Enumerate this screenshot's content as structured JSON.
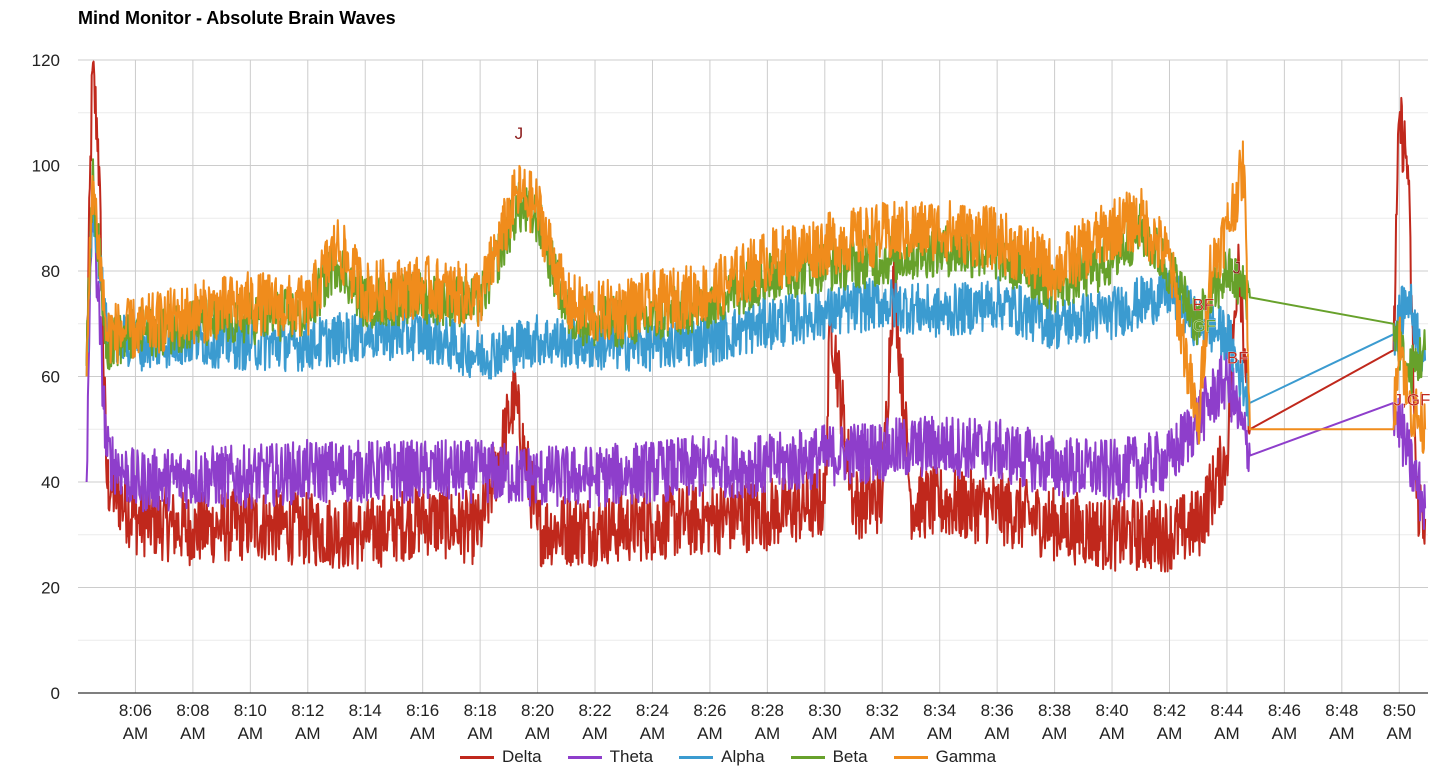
{
  "chart_data": {
    "type": "line",
    "title": "Mind Monitor - Absolute Brain Waves",
    "xlabel": "",
    "ylabel": "",
    "ylim": [
      0,
      120
    ],
    "y_ticks": [
      0,
      20,
      40,
      60,
      80,
      100,
      120
    ],
    "x_range_minutes": [
      "8:04",
      "8:51"
    ],
    "x_ticks": [
      {
        "t": "8:06",
        "line1": "8:06",
        "line2": "AM"
      },
      {
        "t": "8:08",
        "line1": "8:08",
        "line2": "AM"
      },
      {
        "t": "8:10",
        "line1": "8:10",
        "line2": "AM"
      },
      {
        "t": "8:12",
        "line1": "8:12",
        "line2": "AM"
      },
      {
        "t": "8:14",
        "line1": "8:14",
        "line2": "AM"
      },
      {
        "t": "8:16",
        "line1": "8:16",
        "line2": "AM"
      },
      {
        "t": "8:18",
        "line1": "8:18",
        "line2": "AM"
      },
      {
        "t": "8:20",
        "line1": "8:20",
        "line2": "AM"
      },
      {
        "t": "8:22",
        "line1": "8:22",
        "line2": "AM"
      },
      {
        "t": "8:24",
        "line1": "8:24",
        "line2": "AM"
      },
      {
        "t": "8:26",
        "line1": "8:26",
        "line2": "AM"
      },
      {
        "t": "8:28",
        "line1": "8:28",
        "line2": "AM"
      },
      {
        "t": "8:30",
        "line1": "8:30",
        "line2": "AM"
      },
      {
        "t": "8:32",
        "line1": "8:32",
        "line2": "AM"
      },
      {
        "t": "8:34",
        "line1": "8:34",
        "line2": "AM"
      },
      {
        "t": "8:36",
        "line1": "8:36",
        "line2": "AM"
      },
      {
        "t": "8:38",
        "line1": "8:38",
        "line2": "AM"
      },
      {
        "t": "8:40",
        "line1": "8:40",
        "line2": "AM"
      },
      {
        "t": "8:42",
        "line1": "8:42",
        "line2": "AM"
      },
      {
        "t": "8:44",
        "line1": "8:44",
        "line2": "AM"
      },
      {
        "t": "8:46",
        "line1": "8:46",
        "line2": "AM"
      },
      {
        "t": "8:48",
        "line1": "8:48",
        "line2": "AM"
      },
      {
        "t": "8:50",
        "line1": "8:50",
        "line2": "AM"
      }
    ],
    "grid": true,
    "legend_position": "bottom",
    "series": [
      {
        "name": "Delta",
        "color": "#c0281c",
        "points": [
          [
            "8:04.3",
            62
          ],
          [
            "8:04.5",
            118
          ],
          [
            "8:04.7",
            105
          ],
          [
            "8:05",
            40
          ],
          [
            "8:06",
            33
          ],
          [
            "8:08",
            31
          ],
          [
            "8:10",
            32
          ],
          [
            "8:12",
            31
          ],
          [
            "8:14",
            30
          ],
          [
            "8:16",
            33
          ],
          [
            "8:18",
            31
          ],
          [
            "8:19.2",
            56
          ],
          [
            "8:20",
            31
          ],
          [
            "8:22",
            31
          ],
          [
            "8:24",
            32
          ],
          [
            "8:26",
            33
          ],
          [
            "8:28",
            34
          ],
          [
            "8:30",
            36
          ],
          [
            "8:30.2",
            72
          ],
          [
            "8:31",
            36
          ],
          [
            "8:32",
            37
          ],
          [
            "8:32.4",
            80
          ],
          [
            "8:33",
            36
          ],
          [
            "8:34",
            36
          ],
          [
            "8:36",
            35
          ],
          [
            "8:38",
            32
          ],
          [
            "8:40",
            30
          ],
          [
            "8:42",
            30
          ],
          [
            "8:43",
            32
          ],
          [
            "8:44",
            45
          ],
          [
            "8:44.4",
            85
          ],
          [
            "8:44.8",
            50
          ],
          [
            "8:49.8",
            65
          ],
          [
            "8:50",
            109
          ],
          [
            "8:50.3",
            100
          ],
          [
            "8:50.6",
            37
          ],
          [
            "8:50.9",
            33
          ]
        ]
      },
      {
        "name": "Theta",
        "color": "#8e3ecb",
        "points": [
          [
            "8:04.3",
            40
          ],
          [
            "8:04.5",
            95
          ],
          [
            "8:05",
            45
          ],
          [
            "8:06",
            40
          ],
          [
            "8:08",
            41
          ],
          [
            "8:10",
            41
          ],
          [
            "8:12",
            42
          ],
          [
            "8:14",
            42
          ],
          [
            "8:16",
            42
          ],
          [
            "8:18",
            42
          ],
          [
            "8:20",
            41
          ],
          [
            "8:22",
            41
          ],
          [
            "8:24",
            42
          ],
          [
            "8:26",
            43
          ],
          [
            "8:28",
            43
          ],
          [
            "8:30",
            45
          ],
          [
            "8:32",
            46
          ],
          [
            "8:34",
            47
          ],
          [
            "8:36",
            46
          ],
          [
            "8:38",
            43
          ],
          [
            "8:40",
            42
          ],
          [
            "8:42",
            44
          ],
          [
            "8:43",
            52
          ],
          [
            "8:44",
            60
          ],
          [
            "8:44.8",
            45
          ],
          [
            "8:49.8",
            55
          ],
          [
            "8:50.3",
            45
          ],
          [
            "8:50.9",
            35
          ]
        ]
      },
      {
        "name": "Alpha",
        "color": "#3b9bd0",
        "points": [
          [
            "8:04.3",
            60
          ],
          [
            "8:04.5",
            95
          ],
          [
            "8:05",
            68
          ],
          [
            "8:06",
            66
          ],
          [
            "8:08",
            67
          ],
          [
            "8:10",
            66
          ],
          [
            "8:12",
            66
          ],
          [
            "8:14",
            68
          ],
          [
            "8:16",
            68
          ],
          [
            "8:18",
            64
          ],
          [
            "8:20",
            67
          ],
          [
            "8:22",
            66
          ],
          [
            "8:24",
            66
          ],
          [
            "8:26",
            67
          ],
          [
            "8:28",
            70
          ],
          [
            "8:30",
            72
          ],
          [
            "8:32",
            74
          ],
          [
            "8:34",
            72
          ],
          [
            "8:36",
            74
          ],
          [
            "8:38",
            70
          ],
          [
            "8:40",
            72
          ],
          [
            "8:42",
            76
          ],
          [
            "8:43",
            70
          ],
          [
            "8:44",
            68
          ],
          [
            "8:44.8",
            55
          ],
          [
            "8:49.8",
            68
          ],
          [
            "8:50.3",
            75
          ],
          [
            "8:50.9",
            63
          ]
        ]
      },
      {
        "name": "Beta",
        "color": "#67a12b",
        "points": [
          [
            "8:04.3",
            62
          ],
          [
            "8:04.5",
            98
          ],
          [
            "8:05",
            66
          ],
          [
            "8:06",
            68
          ],
          [
            "8:08",
            70
          ],
          [
            "8:10",
            71
          ],
          [
            "8:12",
            72
          ],
          [
            "8:13",
            82
          ],
          [
            "8:14",
            74
          ],
          [
            "8:16",
            75
          ],
          [
            "8:18",
            74
          ],
          [
            "8:19.3",
            92
          ],
          [
            "8:20",
            90
          ],
          [
            "8:21",
            72
          ],
          [
            "8:22",
            70
          ],
          [
            "8:24",
            71
          ],
          [
            "8:26",
            74
          ],
          [
            "8:28",
            79
          ],
          [
            "8:30",
            81
          ],
          [
            "8:32",
            82
          ],
          [
            "8:34",
            84
          ],
          [
            "8:36",
            83
          ],
          [
            "8:38",
            77
          ],
          [
            "8:40",
            82
          ],
          [
            "8:41",
            88
          ],
          [
            "8:42",
            80
          ],
          [
            "8:43",
            70
          ],
          [
            "8:44",
            80
          ],
          [
            "8:44.8",
            75
          ],
          [
            "8:49.8",
            70
          ],
          [
            "8:50.3",
            60
          ],
          [
            "8:50.9",
            65
          ]
        ]
      },
      {
        "name": "Gamma",
        "color": "#f08c1c",
        "points": [
          [
            "8:04.3",
            60
          ],
          [
            "8:04.5",
            98
          ],
          [
            "8:05",
            68
          ],
          [
            "8:06",
            69
          ],
          [
            "8:08",
            72
          ],
          [
            "8:10",
            74
          ],
          [
            "8:12",
            73
          ],
          [
            "8:13",
            85
          ],
          [
            "8:14",
            76
          ],
          [
            "8:16",
            77
          ],
          [
            "8:18",
            75
          ],
          [
            "8:19.3",
            95
          ],
          [
            "8:20",
            92
          ],
          [
            "8:21",
            74
          ],
          [
            "8:22",
            72
          ],
          [
            "8:24",
            74
          ],
          [
            "8:26",
            76
          ],
          [
            "8:28",
            82
          ],
          [
            "8:30",
            85
          ],
          [
            "8:32",
            87
          ],
          [
            "8:34",
            88
          ],
          [
            "8:36",
            86
          ],
          [
            "8:38",
            80
          ],
          [
            "8:40",
            88
          ],
          [
            "8:41",
            90
          ],
          [
            "8:42",
            82
          ],
          [
            "8:43",
            50
          ],
          [
            "8:43.4",
            80
          ],
          [
            "8:44",
            88
          ],
          [
            "8:44.6",
            100
          ],
          [
            "8:44.8",
            50
          ],
          [
            "8:49.8",
            50
          ],
          [
            "8:50",
            70
          ],
          [
            "8:50.3",
            55
          ],
          [
            "8:50.9",
            50
          ]
        ]
      }
    ],
    "annotations": [
      {
        "text": "J",
        "t": "8:19.2",
        "y": 105,
        "color": "#8b1a1a"
      },
      {
        "text": "BF",
        "t": "8:42.8",
        "y": 72.5,
        "color": "#c0281c"
      },
      {
        "text": "GF",
        "t": "8:42.8",
        "y": 68.5,
        "color": "#67a12b"
      },
      {
        "text": "J",
        "t": "8:44.2",
        "y": 79.5,
        "color": "#8b1a1a"
      },
      {
        "text": "BF",
        "t": "8:44.0",
        "y": 62.5,
        "color": "#c0281c"
      },
      {
        "text": "J,GF",
        "t": "8:49.8",
        "y": 54.5,
        "color": "#c0281c"
      }
    ]
  }
}
